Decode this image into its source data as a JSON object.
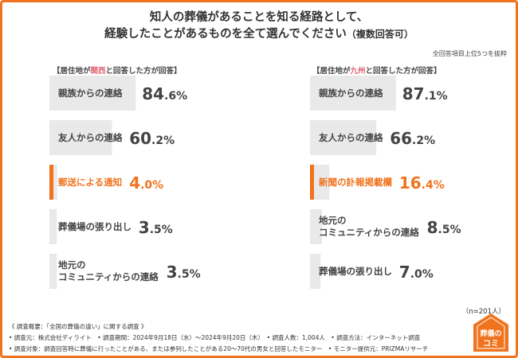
{
  "title_line1": "知人の葬儀があることを知る経路として、",
  "title_line2_main": "経験したことがあるものを全て選んでください",
  "title_line2_paren": "（複数回答可）",
  "top_note": "全回答項目上位5つを抜粋",
  "left_header": {
    "pre": "【居住地が",
    "highlight": "関西",
    "post": "と回答した方が回答】"
  },
  "right_header": {
    "pre": "【居住地が",
    "highlight": "九州",
    "post": "と回答した方が回答】"
  },
  "sample_note": "（n=201人）",
  "footer": {
    "line1": "《 調査概要：「全国の葬儀の違い」に関する調査 》",
    "line2": "• 調査元：株式会社ディライト　• 調査期間：2024年9月18日（水）〜2024年9月20日（木）　• 調査人数：1,004人　• 調査方法：インターネット調査",
    "line3": "• 調査対象：調査回答時に葬儀に行ったことがある、または参列したことがある20〜70代の男女と回答したモニター　• モニター提供元：PRIZMAリサーチ"
  },
  "logo": {
    "line1": "葬儀の",
    "line2": "コミ"
  },
  "colors": {
    "accent": "#f0731e",
    "bar": "#e9e9e9",
    "text": "#444444",
    "header_highlight": "#e06070"
  },
  "chart_data": [
    {
      "type": "bar",
      "orientation": "horizontal",
      "title": "【居住地が関西と回答した方が回答】",
      "categories": [
        "親族からの連絡",
        "友人からの連絡",
        "郵送による通知",
        "葬儀場の張り出し",
        "地元の\nコミュニティからの連絡"
      ],
      "values": [
        84.6,
        60.2,
        4.0,
        3.5,
        3.5
      ],
      "value_labels": [
        "84.6%",
        "60.2%",
        "4.0%",
        "3.5%",
        "3.5%"
      ],
      "highlight_index": 2,
      "xlim": [
        0,
        100
      ],
      "grid": false
    },
    {
      "type": "bar",
      "orientation": "horizontal",
      "title": "【居住地が九州と回答した方が回答】",
      "categories": [
        "親族からの連絡",
        "友人からの連絡",
        "新聞の訃報掲載欄",
        "地元の\nコミュニティからの連絡",
        "葬儀場の張り出し"
      ],
      "values": [
        87.1,
        66.2,
        16.4,
        8.5,
        7.0
      ],
      "value_labels": [
        "87.1%",
        "66.2%",
        "16.4%",
        "8.5%",
        "7.0%"
      ],
      "highlight_index": 2,
      "xlim": [
        0,
        100
      ],
      "grid": false
    }
  ]
}
